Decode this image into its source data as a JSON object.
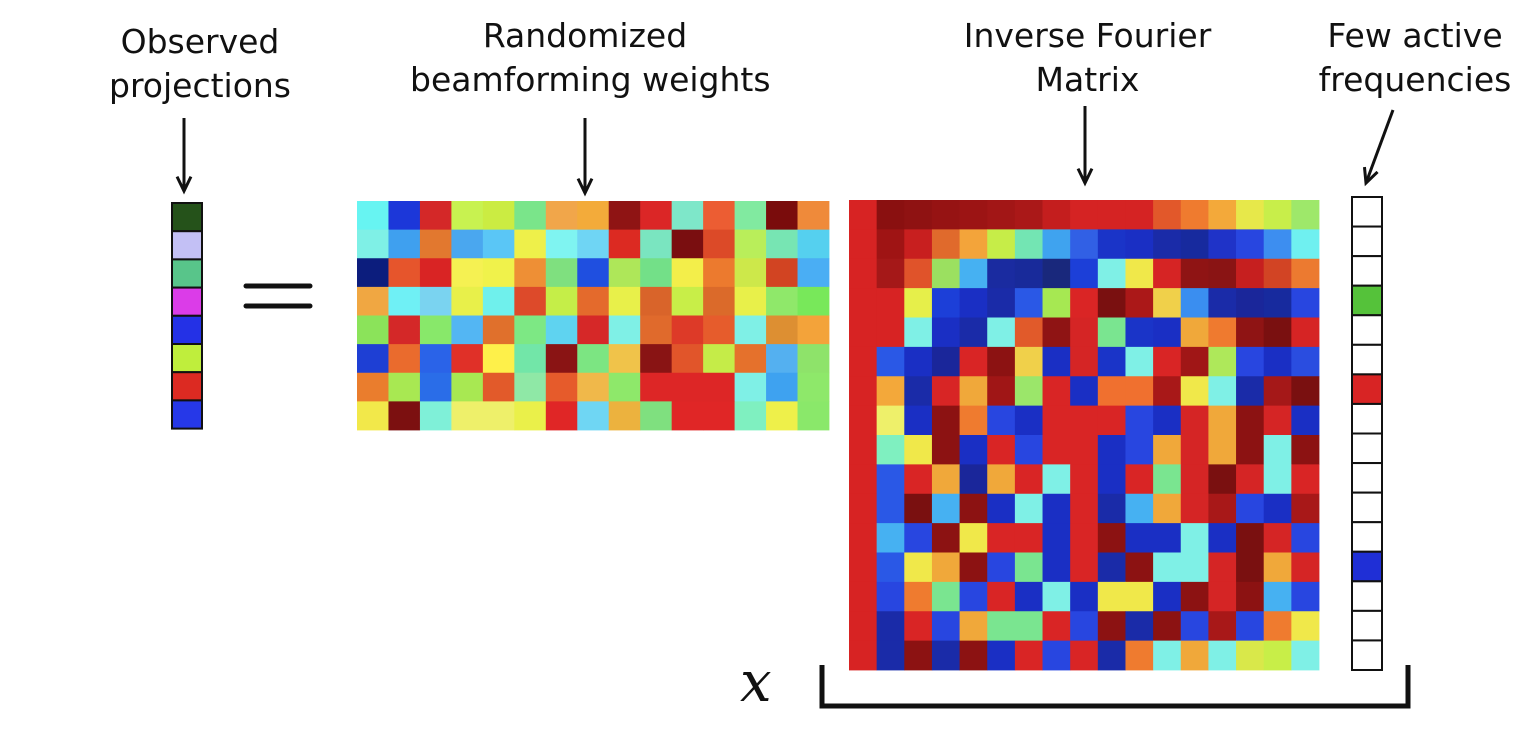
{
  "labels": {
    "observed": [
      "Observed",
      "projections"
    ],
    "weights": [
      "Randomized",
      "beamforming weights"
    ],
    "fourier": [
      "Inverse Fourier",
      "Matrix"
    ],
    "frequencies": [
      "Few active",
      "frequencies"
    ]
  },
  "symbols": {
    "x": "x"
  },
  "observed_vector": [
    "#25521a",
    "#c3c0f5",
    "#58c58a",
    "#db3ce8",
    "#2431e6",
    "#bfee3c",
    "#dc2a22",
    "#2638e8"
  ],
  "frequency_vector": {
    "length": 16,
    "active": [
      {
        "index": 3,
        "color": "#55c23a"
      },
      {
        "index": 6,
        "color": "#d82424"
      },
      {
        "index": 12,
        "color": "#1f2fd6"
      }
    ],
    "empty_color": "#ffffff"
  },
  "weights_matrix": [
    [
      "#67f4f2",
      "#1c37d9",
      "#d42828",
      "#c8f250",
      "#cbec42",
      "#7ae58a",
      "#f1a64a",
      "#f3ab3a",
      "#8f1414",
      "#db2626",
      "#7ee7c9",
      "#ec5d33",
      "#81eaa0",
      "#7a0c0c",
      "#ef8a3a"
    ],
    [
      "#7ff0e6",
      "#3fa0ef",
      "#e2782f",
      "#4aa7ef",
      "#5ac6f6",
      "#eef04a",
      "#7ff4f1",
      "#6fd5f4",
      "#dc2a22",
      "#7ae5c0",
      "#7a0e10",
      "#dc4a28",
      "#b9ee5a",
      "#77e5b3",
      "#55d0ef"
    ],
    [
      "#0c1d7d",
      "#e6552c",
      "#d92424",
      "#f5f152",
      "#f0f24b",
      "#ee8f35",
      "#7fe07f",
      "#1f4fe0",
      "#aee759",
      "#73e088",
      "#f3ee4a",
      "#ec7a2e",
      "#cde84a",
      "#d24422",
      "#4aaef4"
    ],
    [
      "#f0a742",
      "#6ff0f5",
      "#7ad3f0",
      "#e8f04a",
      "#6ff0ec",
      "#dd4a2a",
      "#c5ee48",
      "#e46a2c",
      "#e8f04a",
      "#d9642a",
      "#c8ee48",
      "#db6a2a",
      "#e8f04a",
      "#8fe86a",
      "#78e85a"
    ],
    [
      "#8be35a",
      "#d42828",
      "#88e86a",
      "#53b6f3",
      "#e0702c",
      "#7de884",
      "#5fd3f0",
      "#d62828",
      "#7ff0e6",
      "#e06a2c",
      "#dd3a28",
      "#e65c2c",
      "#7ff0e6",
      "#dd8f32",
      "#f3a33a"
    ],
    [
      "#1e3fd4",
      "#ea6b2d",
      "#2a63e8",
      "#e03028",
      "#fef04a",
      "#72e6a8",
      "#8a1414",
      "#7ce582",
      "#f0c34a",
      "#891414",
      "#e1552a",
      "#c5ec48",
      "#e5712c",
      "#54b0f0",
      "#8ee36a"
    ],
    [
      "#ea7d2d",
      "#a8e852",
      "#2a6de8",
      "#a8e852",
      "#e25a2a",
      "#8fe8a6",
      "#e65b2b",
      "#f0b84a",
      "#8ee86a",
      "#dd2626",
      "#dd2626",
      "#dd2626",
      "#7ff0e6",
      "#3ea2f0",
      "#8ee86a"
    ],
    [
      "#f2e84a",
      "#7c1010",
      "#7ff0d8",
      "#eef06a",
      "#eef06a",
      "#eaf04a",
      "#e02626",
      "#6fd6f3",
      "#ecb23e",
      "#7fe07f",
      "#e02626",
      "#e02626",
      "#7ff0c0",
      "#eef04a",
      "#8ae86a"
    ]
  ],
  "fourier_matrix": [
    [
      "#d72323",
      "#8a1010",
      "#8f1212",
      "#961313",
      "#9c1414",
      "#a21616",
      "#aa1818",
      "#c41e1e",
      "#d52323",
      "#d52323",
      "#d52323",
      "#e2582a",
      "#ef7b2f",
      "#f3a93a",
      "#e7e84a",
      "#c8ee4a",
      "#9ee86a"
    ],
    [
      "#d72323",
      "#9f1414",
      "#c81f1f",
      "#e06a2c",
      "#f3a43a",
      "#c6ed48",
      "#73e5b3",
      "#3fa3ef",
      "#3160e5",
      "#1a34c8",
      "#1a2fc4",
      "#1a2ba8",
      "#172a9e",
      "#1f33c8",
      "#2846e0",
      "#3d8ef0",
      "#6ff0f0"
    ],
    [
      "#d72323",
      "#a51818",
      "#e0532a",
      "#9be060",
      "#46b1f2",
      "#1a2ba0",
      "#182a9a",
      "#19287c",
      "#1c3fd8",
      "#7ff0e6",
      "#f0e84a",
      "#d62424",
      "#8f1414",
      "#8a1414",
      "#c61f1f",
      "#d24424",
      "#ec7a30"
    ],
    [
      "#d72323",
      "#d72323",
      "#e6ef4a",
      "#1c3fd8",
      "#1a2fc4",
      "#1a2ba8",
      "#2a58e6",
      "#a6e852",
      "#da2525",
      "#7a1010",
      "#ab1818",
      "#f0d04a",
      "#3a8ef0",
      "#1a2ba8",
      "#1a269a",
      "#172a9e",
      "#2846e0"
    ],
    [
      "#d72323",
      "#d72323",
      "#7ff0e6",
      "#1a2fc4",
      "#1a2ba8",
      "#7ff0e6",
      "#e15a2a",
      "#8f1414",
      "#d52525",
      "#7ae590",
      "#1a34c8",
      "#1a2fc4",
      "#f0a83a",
      "#ef7a2f",
      "#8f1414",
      "#7a1010",
      "#d62424"
    ],
    [
      "#d72323",
      "#2a58e6",
      "#1a2fc4",
      "#1a269a",
      "#d92525",
      "#8c1212",
      "#f0d04a",
      "#1a2fc4",
      "#d52525",
      "#1a34c8",
      "#7ff0e6",
      "#d92525",
      "#a01616",
      "#aee85a",
      "#2846e0",
      "#1a2fc4",
      "#2a4de0"
    ],
    [
      "#d72323",
      "#f3a83a",
      "#1a2ba8",
      "#d82525",
      "#f0a83a",
      "#a01616",
      "#9be66a",
      "#d92525",
      "#1a2fc4",
      "#f0702f",
      "#f0702f",
      "#a81818",
      "#f0e84a",
      "#7ff0e6",
      "#1a2ba8",
      "#a51818",
      "#7a1010"
    ],
    [
      "#d72323",
      "#eef06a",
      "#1a2fc4",
      "#8c1212",
      "#ef7b2f",
      "#2846e0",
      "#1a2fc4",
      "#d92525",
      "#d92525",
      "#d92525",
      "#2846e0",
      "#1a2fc4",
      "#d52525",
      "#f0a83a",
      "#8c1212",
      "#d52525",
      "#1a2fc4"
    ],
    [
      "#d72323",
      "#7ff0c0",
      "#f0e84a",
      "#8c1212",
      "#1a2fc4",
      "#d92525",
      "#2846e0",
      "#d92525",
      "#d92525",
      "#1a2fc4",
      "#2846e0",
      "#f0a83a",
      "#d52525",
      "#f0a83a",
      "#8c1212",
      "#7ff0e6",
      "#8c1212"
    ],
    [
      "#d72323",
      "#2a58e6",
      "#d92525",
      "#f0a83a",
      "#1a269a",
      "#f0a83a",
      "#d92525",
      "#7ff0e6",
      "#d92525",
      "#1a2fc4",
      "#d92525",
      "#7ae590",
      "#d52525",
      "#7a1010",
      "#d52525",
      "#7ff0e6",
      "#d92525"
    ],
    [
      "#d72323",
      "#2a58e6",
      "#7a1010",
      "#46b1f2",
      "#8c1212",
      "#1a2fc4",
      "#7ff0e6",
      "#1a2fc4",
      "#d92525",
      "#1a2ba8",
      "#46b1f2",
      "#f0a83a",
      "#d52525",
      "#a81818",
      "#2846e0",
      "#1a2fc4",
      "#a81818"
    ],
    [
      "#d72323",
      "#46b1f2",
      "#2846e0",
      "#8c1212",
      "#f0e84a",
      "#d92525",
      "#d92525",
      "#1a2fc4",
      "#d92525",
      "#8c1212",
      "#1a2fc4",
      "#1a2fc4",
      "#7ff0e6",
      "#1a2fc4",
      "#7a1010",
      "#d52525",
      "#2846e0"
    ],
    [
      "#d72323",
      "#2a58e6",
      "#f0e84a",
      "#f0a83a",
      "#8c1212",
      "#2846e0",
      "#7ae590",
      "#1a2fc4",
      "#d92525",
      "#1a2ba8",
      "#8c1212",
      "#7ff0e6",
      "#7ff0e6",
      "#d52525",
      "#7a1010",
      "#f0a83a",
      "#d52525"
    ],
    [
      "#d72323",
      "#2846e0",
      "#ef7b2f",
      "#7ae590",
      "#2846e0",
      "#d92525",
      "#1a2fc4",
      "#7ff0e6",
      "#1a2fc4",
      "#f0e84a",
      "#f0e84a",
      "#1a2fc4",
      "#8c1212",
      "#d52525",
      "#8c1212",
      "#46b1f2",
      "#2846e0"
    ],
    [
      "#d72323",
      "#1a2ba8",
      "#d92525",
      "#2846e0",
      "#f0a83a",
      "#7ae590",
      "#7ae590",
      "#d92525",
      "#2846e0",
      "#8c1212",
      "#1a2ba8",
      "#8c1212",
      "#2846e0",
      "#a81818",
      "#2846e0",
      "#ef7b2f",
      "#f0e84a"
    ],
    [
      "#d72323",
      "#1a2ba8",
      "#8c1212",
      "#1a2ba8",
      "#8c1212",
      "#1a2fc4",
      "#d92525",
      "#2846e0",
      "#d92525",
      "#1a2ba8",
      "#ef7b2f",
      "#7ff0e6",
      "#f0a83a",
      "#7ff0e6",
      "#d9e84a",
      "#c8ee48",
      "#7ff0e6"
    ]
  ],
  "colors": {
    "outline": "#111111",
    "arrow": "#111111"
  }
}
